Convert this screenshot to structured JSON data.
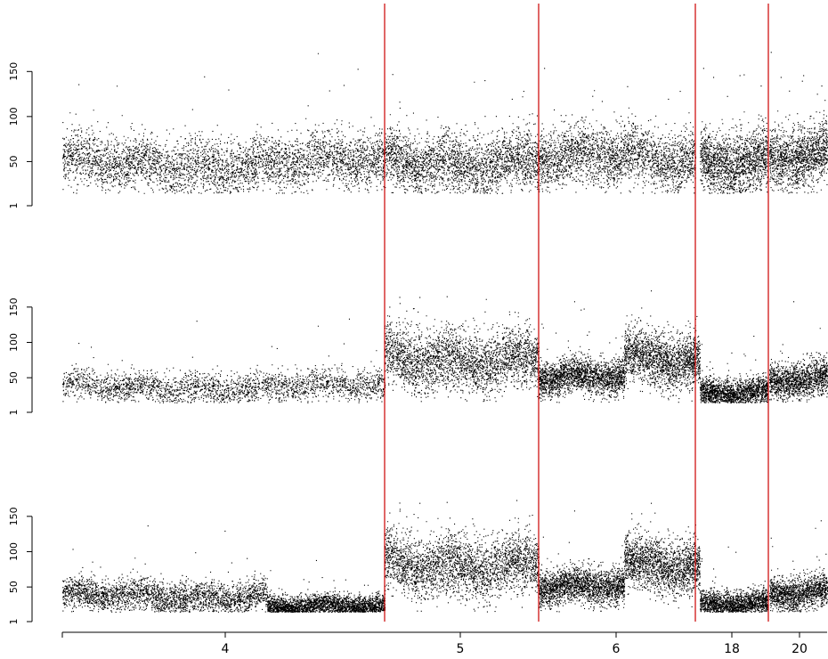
{
  "chart_data": {
    "type": "scatter",
    "title": "",
    "xlabel": "",
    "x_tick_labels": [
      "4",
      "5",
      "6",
      "18",
      "20"
    ],
    "segment_dividers_after": [
      "4",
      "5",
      "6",
      "18"
    ],
    "colors": {
      "points": "#000000",
      "dividers": "#cc0000",
      "axis": "#000000"
    },
    "panels": [
      {
        "id": "top",
        "ylabel": "",
        "ylim": [
          1,
          175
        ],
        "y_ticks": [
          1,
          50,
          100,
          150
        ],
        "level_profile": [
          {
            "segment": "4",
            "level": 48,
            "spread": 24
          },
          {
            "segment": "5",
            "level": 52,
            "spread": 26
          },
          {
            "segment": "6",
            "level": 52,
            "spread": 26
          },
          {
            "segment": "18",
            "level": 55,
            "spread": 27
          },
          {
            "segment": "20",
            "level": 55,
            "spread": 27
          }
        ]
      },
      {
        "id": "middle",
        "ylabel": "",
        "ylim": [
          1,
          175
        ],
        "y_ticks": [
          1,
          50,
          100,
          150
        ],
        "level_profile": [
          {
            "segment": "4",
            "level": 37,
            "spread": 17
          },
          {
            "segment": "5",
            "level": 80,
            "spread": 34
          },
          {
            "segment": "6a",
            "level": 48,
            "spread": 20
          },
          {
            "segment": "6b",
            "level": 75,
            "spread": 30
          },
          {
            "segment": "18",
            "level": 33,
            "spread": 15
          },
          {
            "segment": "20",
            "level": 48,
            "spread": 20
          }
        ]
      },
      {
        "id": "bottom",
        "ylabel": "",
        "ylim": [
          1,
          175
        ],
        "y_ticks": [
          1,
          50,
          100,
          150
        ],
        "level_profile": [
          {
            "segment": "4a",
            "level": 38,
            "spread": 18
          },
          {
            "segment": "4b",
            "level": 22,
            "spread": 12
          },
          {
            "segment": "5",
            "level": 85,
            "spread": 34
          },
          {
            "segment": "6a",
            "level": 48,
            "spread": 20
          },
          {
            "segment": "6b",
            "level": 80,
            "spread": 30
          },
          {
            "segment": "18",
            "level": 30,
            "spread": 14
          },
          {
            "segment": "20",
            "level": 42,
            "spread": 18
          }
        ]
      }
    ]
  }
}
